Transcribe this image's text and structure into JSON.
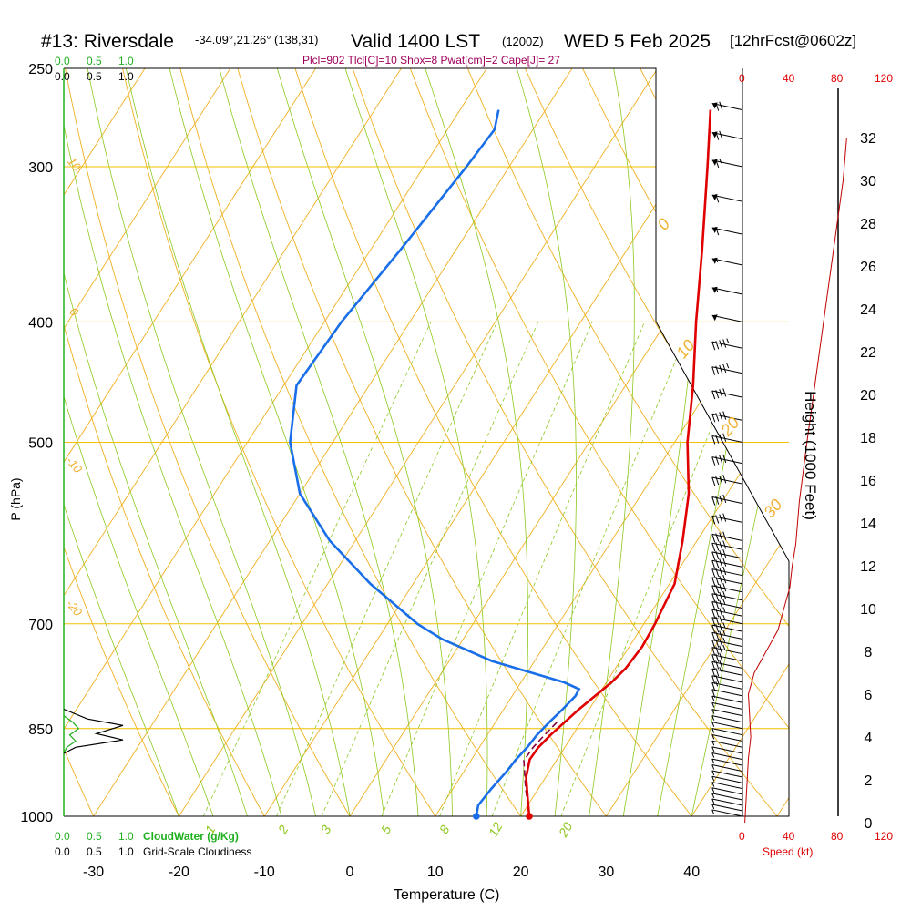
{
  "header": {
    "station": "#13: Riversdale",
    "coords": "-34.09°,21.26° (138,31)",
    "valid": "Valid 1400 LST",
    "zulu": "(1200Z)",
    "date": "WED 5 Feb 2025",
    "forecast": "[12hrFcst@0602z]"
  },
  "indices": "Plcl=902 Tlcl[C]=10 Shox=8 Pwat[cm]=2 Cape[J]= 27",
  "scales": {
    "cloud_top_green": [
      "0.0",
      "0.5",
      "1.0"
    ],
    "cloud_top_black": [
      "0.0",
      "0.5",
      "1.0"
    ],
    "cloud_bottom_green": [
      "0.0",
      "0.5",
      "1.0"
    ],
    "cloud_bottom_black": [
      "0.0",
      "0.5",
      "1.0"
    ],
    "cloudwater_label": "CloudWater (g/Kg)",
    "cloudiness_label": "Grid-Scale Cloudiness",
    "speed_ticks": [
      "0",
      "40",
      "80",
      "120"
    ],
    "speed_label": "Speed (kt)"
  },
  "colors": {
    "temperature": "#e00000",
    "dewpoint": "#1a6ee8",
    "parcel": "#800040",
    "isotherm": "#f0b020",
    "dry_adiabat": "#f0b020",
    "moist_adiabat": "#8cc81e",
    "mixing_ratio": "#8cc81e",
    "wind_speed": "#c00000",
    "cloud_water": "#20b020",
    "cloudiness": "#000000"
  },
  "chart_data": {
    "type": "line",
    "title": "#13: Riversdale -34.09°,21.26° (138,31) Valid 1400 LST (1200Z) WED 5 Feb 2025 [12hrFcst@0602z]",
    "xlabel": "Temperature (C)",
    "ylabel": "P (hPa)",
    "y2label": "Height (1000 Feet)",
    "x_ticks": [
      "-30",
      "-20",
      "-10",
      "0",
      "10",
      "20",
      "30",
      "40"
    ],
    "y_ticks": [
      "250",
      "300",
      "400",
      "500",
      "700",
      "850",
      "1000"
    ],
    "height_ticks": [
      "0",
      "2",
      "4",
      "6",
      "8",
      "10",
      "12",
      "14",
      "16",
      "18",
      "20",
      "22",
      "24",
      "26",
      "28",
      "30",
      "32"
    ],
    "xlim": [
      -35,
      45
    ],
    "ylim": [
      1000,
      250
    ],
    "y_scale": "log",
    "moist_adiabat_labels": [
      "0",
      "10",
      "20",
      "30"
    ],
    "dry_adiabat_labels": [
      "10",
      "0",
      "-10",
      "-20"
    ],
    "mixing_ratio_labels": [
      "1",
      "2",
      "3",
      "5",
      "8",
      "12",
      "20"
    ],
    "series": [
      {
        "name": "Temperature",
        "pressure": [
          1000,
          970,
          930,
          900,
          880,
          860,
          840,
          820,
          800,
          780,
          760,
          730,
          700,
          650,
          600,
          550,
          500,
          450,
          400,
          350,
          300,
          270
        ],
        "temp": [
          21,
          19.6,
          17.7,
          16.8,
          16.9,
          17.4,
          18.1,
          18.8,
          19.7,
          20.6,
          21.2,
          21.5,
          21.3,
          20.6,
          18.3,
          15.5,
          11.5,
          7.9,
          3.5,
          -1.2,
          -6.8,
          -10.7
        ]
      },
      {
        "name": "Dewpoint",
        "pressure": [
          1000,
          980,
          950,
          920,
          900,
          880,
          860,
          840,
          820,
          800,
          790,
          780,
          750,
          720,
          700,
          650,
          600,
          550,
          500,
          450,
          400,
          350,
          300,
          280,
          270
        ],
        "temp": [
          14.8,
          14.2,
          14.5,
          15.0,
          15.2,
          15.6,
          15.8,
          16.3,
          16.9,
          17.4,
          17.3,
          15.0,
          5.0,
          -2.5,
          -6.5,
          -15.0,
          -23.0,
          -30.0,
          -35.0,
          -38.5,
          -38.0,
          -36.5,
          -35.0,
          -34.5,
          -35.5
        ]
      },
      {
        "name": "Parcel",
        "pressure": [
          1000,
          950,
          902,
          880,
          860,
          840
        ],
        "temp": [
          21,
          18.5,
          16.2,
          16.3,
          16.7,
          17.2
        ]
      }
    ],
    "wind_speed_profile": {
      "height_kft": [
        0,
        1,
        2,
        3,
        4,
        5,
        6,
        7,
        8,
        9,
        10,
        11,
        12,
        13,
        15,
        18,
        22,
        26,
        30,
        32
      ],
      "speed_kt": [
        2,
        3,
        4,
        5,
        7,
        6,
        5,
        10,
        20,
        30,
        35,
        40,
        42,
        45,
        48,
        55,
        65,
        75,
        85,
        88
      ]
    },
    "wind_barbs": {
      "pressure": [
        1000,
        990,
        980,
        970,
        960,
        950,
        940,
        930,
        920,
        910,
        900,
        890,
        880,
        870,
        860,
        850,
        840,
        830,
        820,
        810,
        800,
        790,
        780,
        770,
        760,
        750,
        740,
        730,
        720,
        710,
        700,
        690,
        680,
        670,
        660,
        650,
        640,
        630,
        620,
        610,
        600,
        580,
        560,
        540,
        520,
        500,
        480,
        460,
        440,
        420,
        400,
        380,
        360,
        340,
        320,
        300,
        285,
        270
      ],
      "speed_kt": [
        5,
        5,
        5,
        5,
        5,
        5,
        5,
        5,
        5,
        5,
        5,
        5,
        5,
        5,
        5,
        5,
        5,
        5,
        5,
        5,
        10,
        15,
        20,
        25,
        30,
        30,
        35,
        35,
        35,
        35,
        35,
        35,
        35,
        40,
        40,
        40,
        40,
        40,
        40,
        40,
        40,
        40,
        40,
        40,
        40,
        40,
        40,
        40,
        45,
        45,
        50,
        55,
        55,
        60,
        60,
        65,
        70,
        70
      ]
    },
    "cloud_water": {
      "pressure": [
        830,
        840,
        850,
        860,
        870,
        880,
        890
      ],
      "value": [
        0.0,
        0.15,
        0.25,
        0.1,
        0.2,
        0.05,
        0.0
      ]
    },
    "cloudiness": {
      "pressure": [
        820,
        835,
        845,
        858,
        868,
        880,
        890
      ],
      "value": [
        0.0,
        0.4,
        1.0,
        0.55,
        1.0,
        0.2,
        0.0
      ]
    }
  }
}
